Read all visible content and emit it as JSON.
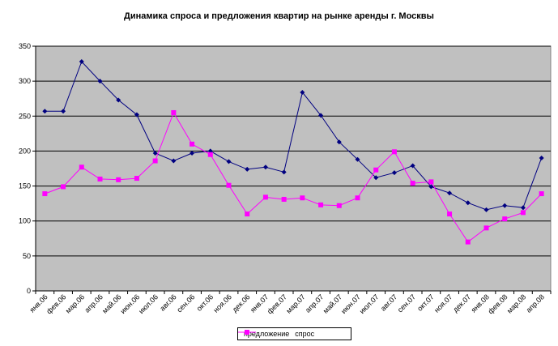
{
  "chart_data": {
    "type": "line",
    "title": "Динамика спроса и предложения квартир на рынке аренды г. Москвы",
    "xlabel": "",
    "ylabel": "",
    "ylim": [
      0,
      350
    ],
    "yticks": [
      0,
      50,
      100,
      150,
      200,
      250,
      300,
      350
    ],
    "grid": true,
    "legend_position": "bottom",
    "plot_background": "#c0c0c0",
    "categories": [
      "янв.06",
      "фев.06",
      "мар.06",
      "апр.06",
      "май.06",
      "июн.06",
      "июл.06",
      "авг.06",
      "сен.06",
      "окт.06",
      "ноя.06",
      "дек.06",
      "янв.07",
      "фев.07",
      "мар.07",
      "апр.07",
      "май.07",
      "июн.07",
      "июл.07",
      "авг.07",
      "сен.07",
      "окт.07",
      "ноя.07",
      "дек.07",
      "янв.08",
      "фев.08",
      "мар.08",
      "апр.08"
    ],
    "series": [
      {
        "name": "предложение",
        "color": "#000080",
        "marker": "diamond",
        "values": [
          257,
          257,
          328,
          300,
          273,
          252,
          197,
          186,
          197,
          200,
          185,
          174,
          177,
          170,
          284,
          251,
          213,
          188,
          162,
          169,
          179,
          149,
          140,
          126,
          116,
          122,
          119,
          190
        ]
      },
      {
        "name": "спрос",
        "color": "#ff00ff",
        "marker": "square",
        "values": [
          139,
          149,
          177,
          160,
          159,
          161,
          186,
          255,
          210,
          195,
          151,
          110,
          134,
          131,
          133,
          123,
          122,
          133,
          173,
          199,
          154,
          156,
          110,
          70,
          90,
          103,
          112,
          139
        ]
      }
    ]
  }
}
